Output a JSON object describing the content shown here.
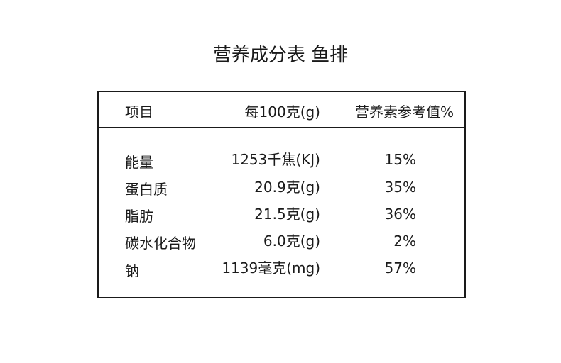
{
  "title": "营养成分表  鱼排",
  "header": {
    "item": "项目",
    "per100": "每100克(g)",
    "nrv": "营养素参考值%"
  },
  "rows": [
    {
      "name": "能量",
      "amount": "1253千焦(KJ)",
      "nrv": "15%"
    },
    {
      "name": "蛋白质",
      "amount": "20.9克(g)",
      "nrv": "35%"
    },
    {
      "name": "脂肪",
      "amount": "21.5克(g)",
      "nrv": "36%"
    },
    {
      "name": "碳水化合物",
      "amount": "6.0克(g)",
      "nrv": "2%"
    },
    {
      "name": "钠",
      "amount": "1139毫克(mg)",
      "nrv": "57%"
    }
  ]
}
